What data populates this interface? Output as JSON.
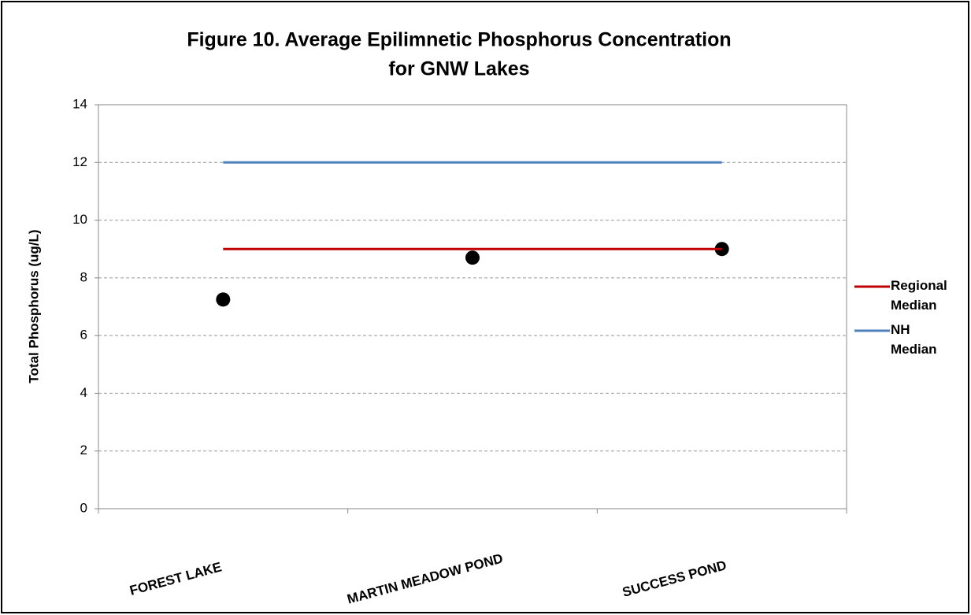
{
  "chart_data": {
    "type": "scatter",
    "title": [
      "Figure 10. Average Epilimnetic Phosphorus Concentration",
      "for GNW Lakes"
    ],
    "y_label": "Total Phosphorus (ug/L)",
    "categories": [
      "FOREST LAKE",
      "MARTIN MEADOW POND",
      "SUCCESS POND"
    ],
    "series": [
      {
        "color": "#000000",
        "values": [
          7.25,
          8.7,
          9.0
        ]
      },
      {
        "name": "Regional Median",
        "color": "#c00000",
        "values": [
          9,
          9,
          9
        ],
        "type": "line"
      },
      {
        "name": "NH Median",
        "color": "#4f81bd",
        "values": [
          12,
          12,
          12
        ],
        "type": "line"
      }
    ],
    "ylim": [
      0,
      14
    ],
    "yticks": [
      0,
      2,
      4,
      6,
      8,
      10,
      12,
      14
    ],
    "grid": true,
    "legend": "right"
  }
}
